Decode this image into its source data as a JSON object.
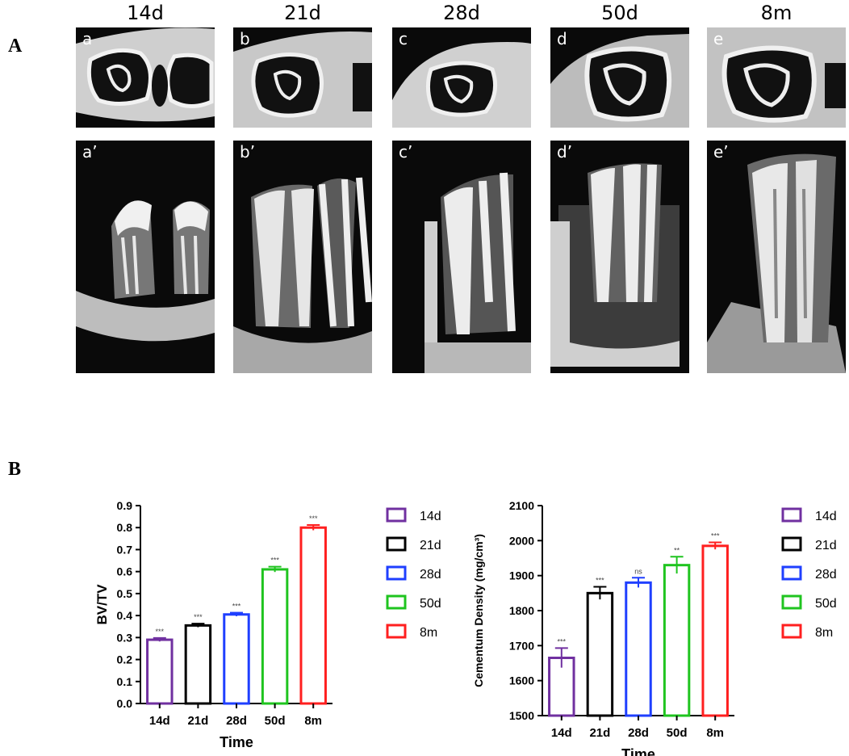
{
  "panel_a_label": "A",
  "panel_b_label": "B",
  "columns": [
    {
      "header": "14d",
      "top_label": "a",
      "bottom_label": "a’"
    },
    {
      "header": "21d",
      "top_label": "b",
      "bottom_label": "b’"
    },
    {
      "header": "28d",
      "top_label": "c",
      "bottom_label": "c’"
    },
    {
      "header": "50d",
      "top_label": "d",
      "bottom_label": "d’"
    },
    {
      "header": "8m",
      "top_label": "e",
      "bottom_label": "e’"
    }
  ],
  "chart_data": [
    {
      "type": "bar",
      "categories": [
        "14d",
        "21d",
        "28d",
        "50d",
        "8m"
      ],
      "values": [
        0.29,
        0.355,
        0.405,
        0.61,
        0.8
      ],
      "errors": [
        0.008,
        0.008,
        0.008,
        0.012,
        0.012
      ],
      "significance": [
        "***",
        "***",
        "***",
        "***",
        "***"
      ],
      "colors": [
        "#7030a0",
        "#000000",
        "#1f3fff",
        "#1fc41f",
        "#ff1f1f"
      ],
      "xlabel": "Time",
      "ylabel": "BV/TV",
      "ylim": [
        0,
        0.9
      ],
      "yticks": [
        "0.0",
        "0.1",
        "0.2",
        "0.3",
        "0.4",
        "0.5",
        "0.6",
        "0.7",
        "0.8",
        "0.9"
      ],
      "legend": [
        "14d",
        "21d",
        "28d",
        "50d",
        "8m"
      ],
      "legend_position": "right"
    },
    {
      "type": "bar",
      "categories": [
        "14d",
        "21d",
        "28d",
        "50d",
        "8m"
      ],
      "values": [
        1665,
        1850,
        1880,
        1930,
        1985
      ],
      "errors": [
        28,
        18,
        14,
        24,
        10
      ],
      "significance": [
        "***",
        "***",
        "ns",
        "**",
        "***"
      ],
      "colors": [
        "#7030a0",
        "#000000",
        "#1f3fff",
        "#1fc41f",
        "#ff1f1f"
      ],
      "xlabel": "Time",
      "ylabel": "Cementum Density (mg/cm³)",
      "ylim": [
        1500,
        2100
      ],
      "yticks": [
        "1500",
        "1600",
        "1700",
        "1800",
        "1900",
        "2000",
        "2100"
      ],
      "legend": [
        "14d",
        "21d",
        "28d",
        "50d",
        "8m"
      ],
      "legend_position": "right"
    }
  ]
}
